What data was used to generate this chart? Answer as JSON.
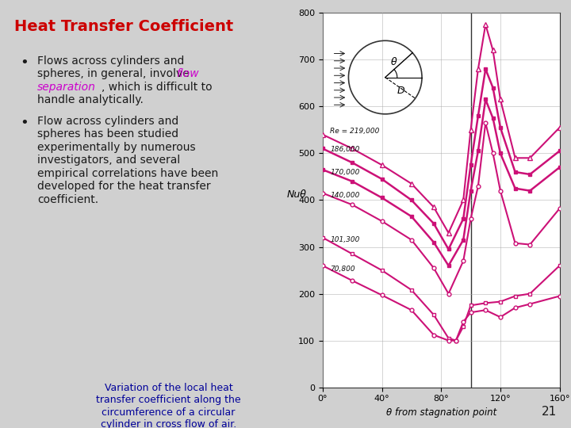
{
  "title": "Heat Transfer Coefficient",
  "bg_color": "#d0d0d0",
  "title_color": "#cc0000",
  "text_color": "#1a1a1a",
  "caption_color": "#000099",
  "italic_color": "#cc00cc",
  "ylabel": "Nuθ",
  "xlabel": "θ from stagnation point",
  "ylim": [
    0,
    800
  ],
  "xlim": [
    0,
    160
  ],
  "xticks": [
    0,
    40,
    80,
    120,
    160
  ],
  "yticks": [
    0,
    100,
    200,
    300,
    400,
    500,
    600,
    700,
    800
  ],
  "plot_bg": "#ffffff",
  "grid_color": "#aaaaaa",
  "curve_color": "#cc1177",
  "curves": [
    {
      "label": "Re = 219,000",
      "marker": "^",
      "filled": false,
      "x": [
        0,
        20,
        40,
        60,
        75,
        85,
        95,
        100,
        105,
        110,
        115,
        120,
        130,
        140,
        160
      ],
      "y": [
        540,
        510,
        475,
        435,
        385,
        330,
        400,
        550,
        680,
        775,
        720,
        615,
        490,
        490,
        555
      ]
    },
    {
      "label": "186,000",
      "marker": "s",
      "filled": true,
      "x": [
        0,
        20,
        40,
        60,
        75,
        85,
        95,
        100,
        105,
        110,
        115,
        120,
        130,
        140,
        160
      ],
      "y": [
        510,
        480,
        445,
        400,
        350,
        295,
        360,
        475,
        580,
        680,
        640,
        555,
        460,
        455,
        505
      ]
    },
    {
      "label": "170,000",
      "marker": "s",
      "filled": true,
      "x": [
        0,
        20,
        40,
        60,
        75,
        85,
        95,
        100,
        105,
        110,
        115,
        120,
        130,
        140,
        160
      ],
      "y": [
        465,
        440,
        405,
        365,
        310,
        260,
        315,
        420,
        505,
        615,
        575,
        500,
        425,
        420,
        470
      ]
    },
    {
      "label": "140,000",
      "marker": "o",
      "filled": false,
      "x": [
        0,
        20,
        40,
        60,
        75,
        85,
        95,
        100,
        105,
        110,
        115,
        120,
        130,
        140,
        160
      ],
      "y": [
        415,
        390,
        355,
        315,
        255,
        200,
        270,
        360,
        430,
        565,
        500,
        420,
        308,
        305,
        382
      ]
    },
    {
      "label": "101,300",
      "marker": "s",
      "filled": false,
      "x": [
        0,
        20,
        40,
        60,
        75,
        85,
        90,
        95,
        100,
        110,
        120,
        130,
        140,
        160
      ],
      "y": [
        320,
        285,
        250,
        208,
        155,
        105,
        100,
        130,
        175,
        180,
        183,
        195,
        200,
        260
      ]
    },
    {
      "label": "70,800",
      "marker": "o",
      "filled": false,
      "x": [
        0,
        20,
        40,
        60,
        75,
        85,
        90,
        95,
        100,
        110,
        120,
        130,
        140,
        160
      ],
      "y": [
        260,
        228,
        197,
        165,
        112,
        100,
        100,
        140,
        160,
        165,
        150,
        170,
        178,
        195
      ]
    }
  ],
  "label_positions": [
    [
      5,
      548,
      "Re = 219,000"
    ],
    [
      5,
      508,
      "186,000"
    ],
    [
      5,
      460,
      "170,000"
    ],
    [
      5,
      410,
      "140,000"
    ],
    [
      5,
      315,
      "101,300"
    ],
    [
      5,
      253,
      "70,800"
    ]
  ],
  "vline_x": 100,
  "caption": "Variation of the local heat\ntransfer coefficient along the\ncircumference of a circular\ncylinder in cross flow of air.",
  "page_number": "21"
}
